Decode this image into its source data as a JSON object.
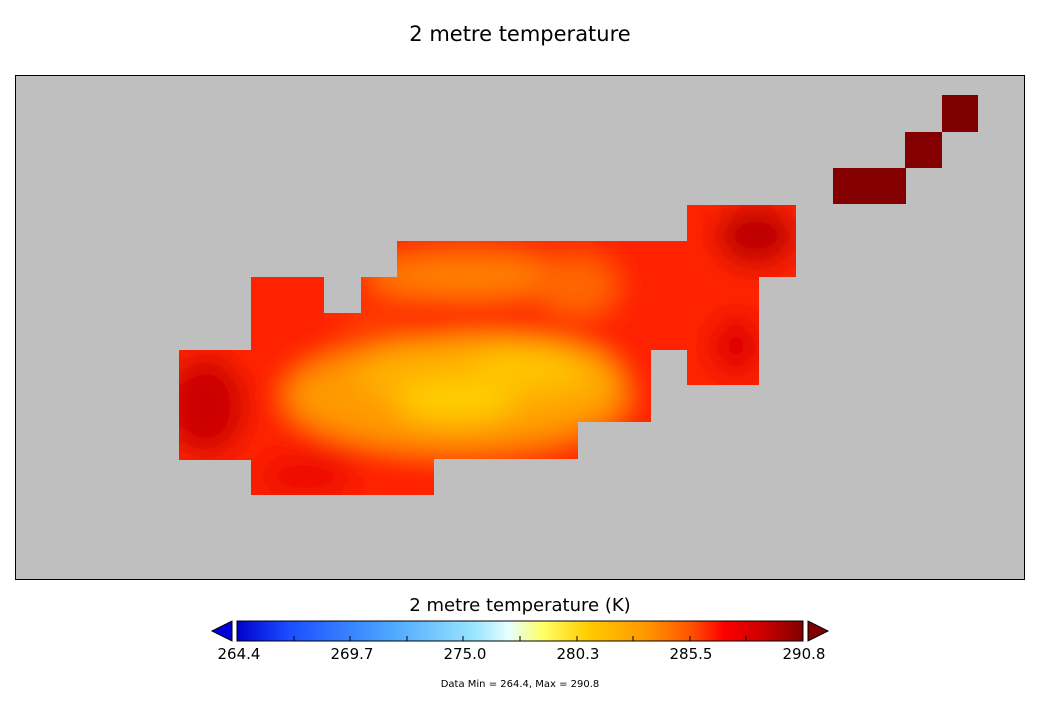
{
  "title": "2 metre temperature",
  "colorbar": {
    "title": "2 metre temperature (K)",
    "ticks": [
      "264.4",
      "269.7",
      "275.0",
      "280.3",
      "285.5",
      "290.8"
    ],
    "min": 264.4,
    "max": 290.8,
    "extend": "both",
    "colors": [
      "#0000cc",
      "#1a4dff",
      "#4da6ff",
      "#99e6ff",
      "#e6ffff",
      "#ffff66",
      "#ffcc00",
      "#ff9900",
      "#ff5500",
      "#ff0000",
      "#cc0000",
      "#800000"
    ]
  },
  "map": {
    "background_color": "#bfbfbf",
    "variable": "2 metre temperature",
    "units": "K"
  },
  "stats": {
    "text": "Data Min = 264.4, Max = 290.8"
  }
}
